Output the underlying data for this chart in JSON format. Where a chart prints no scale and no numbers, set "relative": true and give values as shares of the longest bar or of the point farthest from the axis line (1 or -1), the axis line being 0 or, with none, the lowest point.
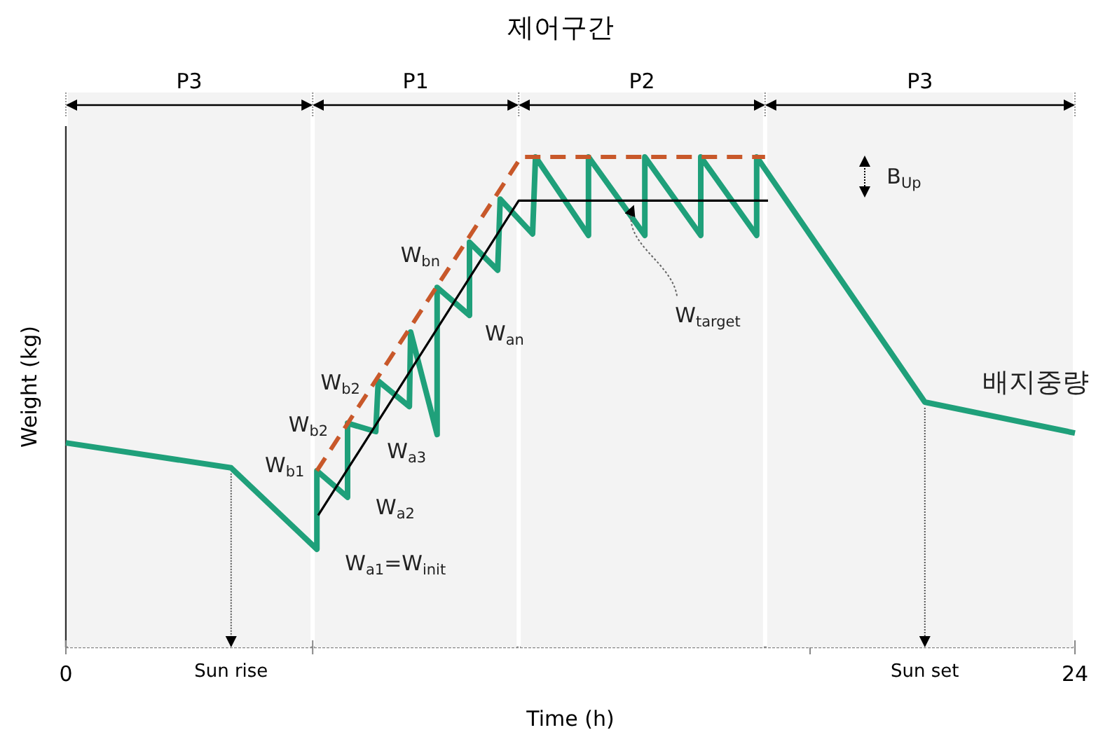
{
  "chart_data": {
    "type": "line",
    "title": "제어구간",
    "xlabel": "Time (h)",
    "ylabel": "Weight (kg)",
    "relative": true,
    "legend": false,
    "grid": false,
    "xlim": [
      0,
      24
    ],
    "xticks": [
      0,
      {
        "value": 5.87,
        "label": null
      },
      {
        "value": 17.7,
        "label": null
      },
      24
    ],
    "series": [
      {
        "name": "배지중량",
        "color": "#1fa07a",
        "x": [
          0,
          3.93,
          5.97,
          5.97,
          6.7,
          6.7,
          7.37,
          7.43,
          8.17,
          8.2,
          8.83,
          8.83,
          9.6,
          9.6,
          10.27,
          10.33,
          11.1,
          11.17,
          12.43,
          12.43,
          13.77,
          13.77,
          15.1,
          15.1,
          16.43,
          16.43,
          20.43,
          24
        ],
        "values": [
          0.417,
          0.366,
          0.2,
          0.36,
          0.306,
          0.457,
          0.44,
          0.543,
          0.491,
          0.643,
          0.434,
          0.734,
          0.677,
          0.826,
          0.769,
          0.914,
          0.843,
          1,
          0.84,
          1,
          0.84,
          1,
          0.84,
          1,
          0.84,
          1,
          0.5,
          0.437
        ]
      },
      {
        "color": "#c8582a",
        "line_style": "dashed",
        "x": [
          5.97,
          10.83,
          16.63
        ],
        "values": [
          0.36,
          1,
          1
        ]
      },
      {
        "color": "#000000",
        "x": [
          6,
          10.77,
          16.7
        ],
        "values": [
          0.269,
          0.911,
          0.911
        ]
      }
    ],
    "bands": [
      {
        "axis": "x",
        "from": 0,
        "to": 5.87,
        "label": "P3",
        "color": "#f3f3f3"
      },
      {
        "axis": "x",
        "from": 5.87,
        "to": 10.77,
        "label": "P1",
        "color": "#f3f3f3"
      },
      {
        "axis": "x",
        "from": 10.77,
        "to": 16.63,
        "label": "P2",
        "color": "#f3f3f3"
      },
      {
        "axis": "x",
        "from": 16.63,
        "to": 24,
        "label": "P3",
        "color": "#f3f3f3"
      }
    ],
    "ref_lines": [
      {
        "axis": "x",
        "value": 3.93,
        "label": "Sun rise"
      },
      {
        "axis": "x",
        "value": 20.43,
        "label": "Sun set"
      }
    ],
    "annotations": [
      {
        "text": "W$_{b1}$",
        "x": 5.97,
        "y": 0.36
      },
      {
        "text": "W$_{b2}$",
        "x": 6.7,
        "y": 0.457
      },
      {
        "text": "W$_{b2}$",
        "x": 7.43,
        "y": 0.543
      },
      {
        "text": "W$_{bn}$",
        "x": 8.83,
        "y": 0.734
      },
      {
        "text": "W$_{an}$",
        "x": 9.6,
        "y": 0.677
      },
      {
        "text": "W$_{a3}$",
        "x": 8.17,
        "y": 0.491
      },
      {
        "text": "W$_{a2}$",
        "x": 6.7,
        "y": 0.306
      },
      {
        "text": "W$_{a1}$=W$_{init}$",
        "x": 5.97,
        "y": 0.2
      },
      {
        "text": "W$_{target}$",
        "x": 13.5,
        "y": 0.911
      },
      "B$_{Up}$"
    ]
  }
}
